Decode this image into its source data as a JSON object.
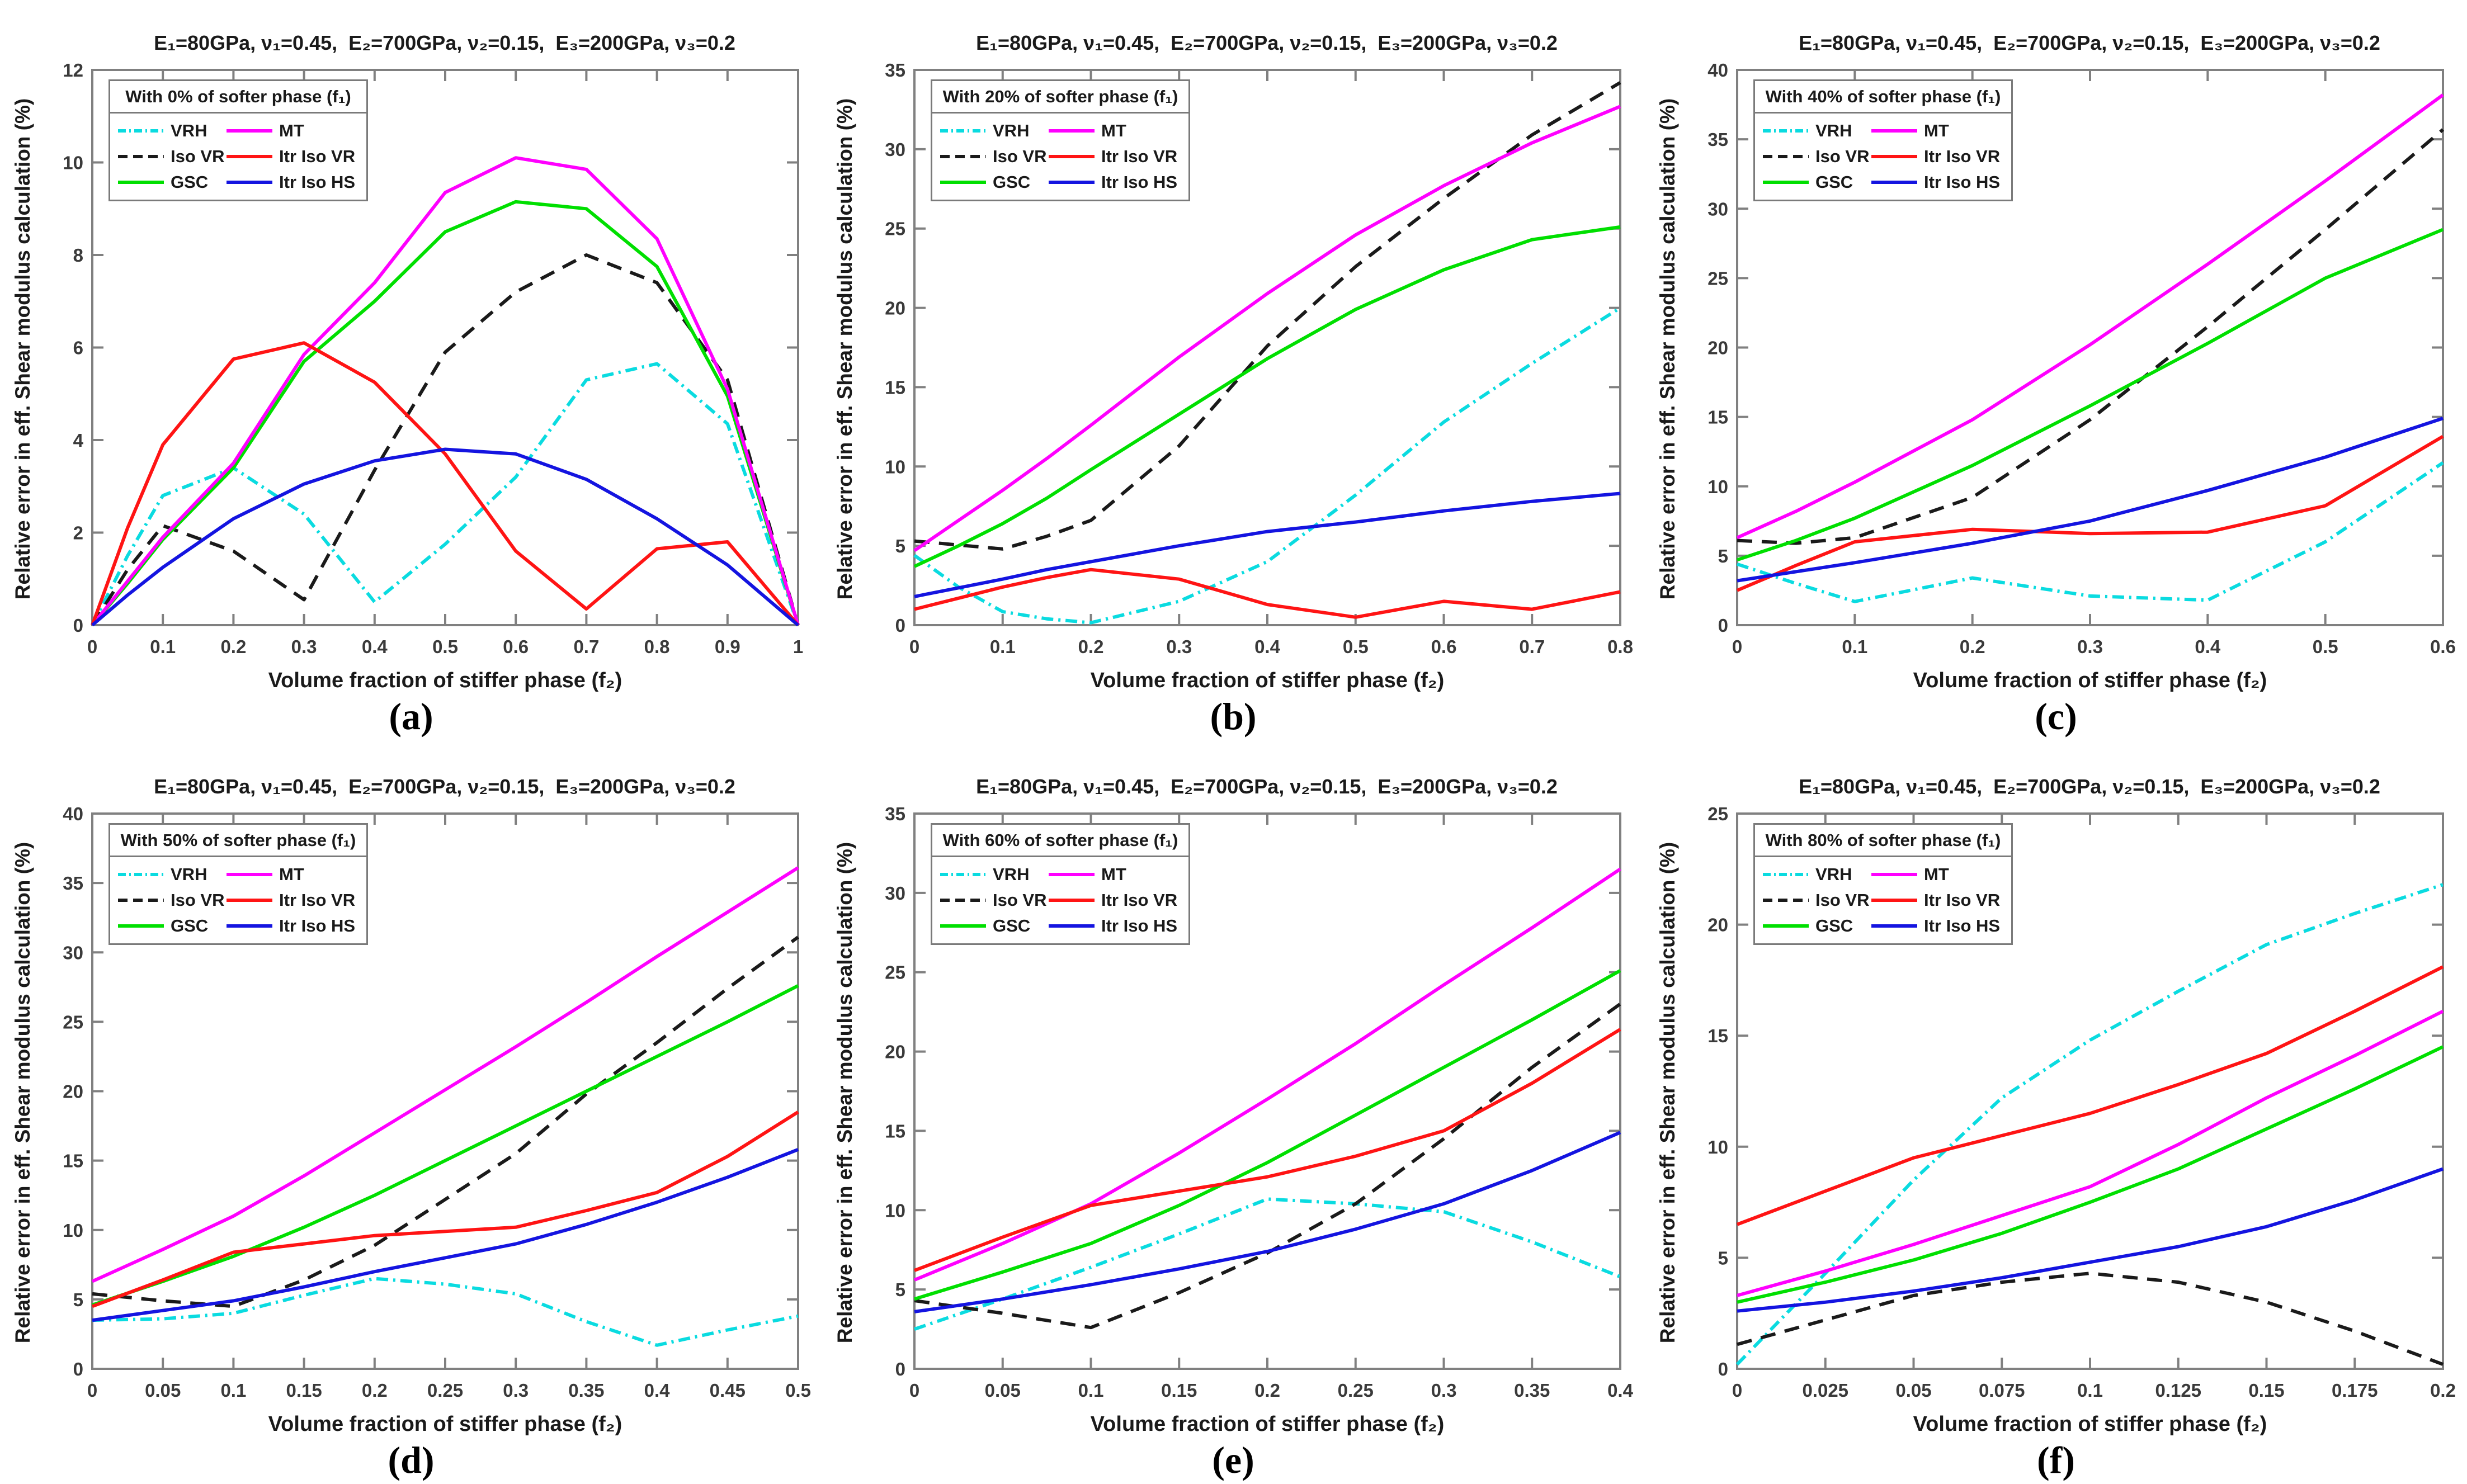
{
  "figure": {
    "title": "E₁=80GPa, ν₁=0.45,  E₂=700GPa, ν₂=0.15,  E₃=200GPa, ν₃=0.2",
    "xlabel": "Volume fraction of stiffer phase (f₂)",
    "ylabel": "Relative error in eff. Shear modulus calculation (%)"
  },
  "style": {
    "background": "#ffffff",
    "axis_color": "#808080",
    "tick_label_color": "#3a3a3a",
    "text_color": "#1a1a1a",
    "line_width": 6
  },
  "series": [
    {
      "name": "VRH",
      "color": "#0adbe0",
      "dash": "dashdot"
    },
    {
      "name": "Iso VR",
      "color": "#1a1a1a",
      "dash": "dashed"
    },
    {
      "name": "GSC",
      "color": "#00df00",
      "dash": "solid"
    },
    {
      "name": "MT",
      "color": "#ff00ff",
      "dash": "solid"
    },
    {
      "name": "Itr Iso VR",
      "color": "#ff1414",
      "dash": "solid"
    },
    {
      "name": "Itr Iso HS",
      "color": "#1414e0",
      "dash": "solid"
    }
  ],
  "chart_data": [
    {
      "type": "line",
      "caption": "(a)",
      "title": "E₁=80GPa, ν₁=0.45,  E₂=700GPa, ν₂=0.15,  E₃=200GPa, ν₃=0.2",
      "xlabel": "Volume fraction of stiffer phase (f₂)",
      "ylabel": "Relative error in eff. Shear modulus calculation (%)",
      "legend_title": "With 0% of softer phase (f₁)",
      "legend_position": "top-left",
      "grid": false,
      "xlim": [
        0,
        1
      ],
      "ylim": [
        0,
        12
      ],
      "xtick_labels": [
        "0",
        "0.1",
        "0.2",
        "0.3",
        "0.4",
        "0.5",
        "0.6",
        "0.7",
        "0.8",
        "0.9",
        "1"
      ],
      "xtick_values": [
        0,
        0.1,
        0.2,
        0.3,
        0.4,
        0.5,
        0.6,
        0.7,
        0.8,
        0.9,
        1
      ],
      "ytick_labels": [
        "0",
        "2",
        "4",
        "6",
        "8",
        "10",
        "12"
      ],
      "ytick_values": [
        0,
        2,
        4,
        6,
        8,
        10,
        12
      ],
      "x": [
        0,
        0.05,
        0.1,
        0.2,
        0.3,
        0.4,
        0.5,
        0.6,
        0.7,
        0.8,
        0.9,
        1
      ],
      "series": [
        {
          "name": "VRH",
          "values": [
            0,
            1.5,
            2.8,
            3.4,
            2.4,
            0.5,
            1.75,
            3.2,
            5.3,
            5.65,
            4.35,
            0
          ]
        },
        {
          "name": "Iso VR",
          "values": [
            0,
            1.2,
            2.15,
            1.6,
            0.55,
            3.35,
            5.9,
            7.2,
            8.0,
            7.4,
            5.3,
            0
          ]
        },
        {
          "name": "GSC",
          "values": [
            0,
            0.9,
            1.85,
            3.4,
            5.7,
            7.0,
            8.5,
            9.15,
            9.0,
            7.75,
            4.95,
            0
          ]
        },
        {
          "name": "MT",
          "values": [
            0,
            0.95,
            1.9,
            3.5,
            5.85,
            7.4,
            9.35,
            10.1,
            9.85,
            8.35,
            5.1,
            0
          ]
        },
        {
          "name": "Itr Iso VR",
          "values": [
            0,
            2.1,
            3.9,
            5.75,
            6.1,
            5.25,
            3.7,
            1.6,
            0.35,
            1.65,
            1.8,
            0
          ]
        },
        {
          "name": "Itr Iso HS",
          "values": [
            0,
            0.65,
            1.25,
            2.3,
            3.05,
            3.55,
            3.8,
            3.7,
            3.15,
            2.3,
            1.3,
            0
          ]
        }
      ]
    },
    {
      "type": "line",
      "caption": "(b)",
      "title": "E₁=80GPa, ν₁=0.45,  E₂=700GPa, ν₂=0.15,  E₃=200GPa, ν₃=0.2",
      "xlabel": "Volume fraction of stiffer phase (f₂)",
      "ylabel": "Relative error in eff. Shear modulus calculation (%)",
      "legend_title": "With 20% of softer phase (f₁)",
      "legend_position": "top-left",
      "grid": false,
      "xlim": [
        0,
        0.8
      ],
      "ylim": [
        0,
        35
      ],
      "xtick_labels": [
        "0",
        "0.1",
        "0.2",
        "0.3",
        "0.4",
        "0.5",
        "0.6",
        "0.7",
        "0.8"
      ],
      "xtick_values": [
        0,
        0.1,
        0.2,
        0.3,
        0.4,
        0.5,
        0.6,
        0.7,
        0.8
      ],
      "ytick_labels": [
        "0",
        "5",
        "10",
        "15",
        "20",
        "25",
        "30",
        "35"
      ],
      "ytick_values": [
        0,
        5,
        10,
        15,
        20,
        25,
        30,
        35
      ],
      "x": [
        0,
        0.05,
        0.1,
        0.15,
        0.2,
        0.3,
        0.4,
        0.5,
        0.6,
        0.7,
        0.8
      ],
      "series": [
        {
          "name": "VRH",
          "values": [
            4.4,
            2.4,
            0.85,
            0.4,
            0.15,
            1.5,
            4.0,
            8.2,
            12.8,
            16.5,
            20.0
          ]
        },
        {
          "name": "Iso VR",
          "values": [
            5.3,
            5.05,
            4.8,
            5.6,
            6.6,
            11.3,
            17.6,
            22.6,
            26.9,
            30.9,
            34.2
          ]
        },
        {
          "name": "GSC",
          "values": [
            3.7,
            5.0,
            6.4,
            8.0,
            9.8,
            13.3,
            16.8,
            19.9,
            22.4,
            24.3,
            25.1
          ]
        },
        {
          "name": "MT",
          "values": [
            4.7,
            6.6,
            8.5,
            10.5,
            12.6,
            16.9,
            20.9,
            24.6,
            27.7,
            30.4,
            32.7
          ]
        },
        {
          "name": "Itr Iso VR",
          "values": [
            1.0,
            1.7,
            2.4,
            3.0,
            3.5,
            2.9,
            1.3,
            0.5,
            1.5,
            1.0,
            2.1
          ]
        },
        {
          "name": "Itr Iso HS",
          "values": [
            1.8,
            2.35,
            2.9,
            3.5,
            4.0,
            5.0,
            5.9,
            6.5,
            7.2,
            7.8,
            8.3
          ]
        }
      ]
    },
    {
      "type": "line",
      "caption": "(c)",
      "title": "E₁=80GPa, ν₁=0.45,  E₂=700GPa, ν₂=0.15,  E₃=200GPa, ν₃=0.2",
      "xlabel": "Volume fraction of stiffer phase (f₂)",
      "ylabel": "Relative error in eff. Shear modulus calculation (%)",
      "legend_title": "With 40% of softer phase (f₁)",
      "legend_position": "top-left",
      "grid": false,
      "xlim": [
        0,
        0.6
      ],
      "ylim": [
        0,
        40
      ],
      "xtick_labels": [
        "0",
        "0.1",
        "0.2",
        "0.3",
        "0.4",
        "0.5",
        "0.6"
      ],
      "xtick_values": [
        0,
        0.1,
        0.2,
        0.3,
        0.4,
        0.5,
        0.6
      ],
      "ytick_labels": [
        "0",
        "5",
        "10",
        "15",
        "20",
        "25",
        "30",
        "35",
        "40"
      ],
      "ytick_values": [
        0,
        5,
        10,
        15,
        20,
        25,
        30,
        35,
        40
      ],
      "x": [
        0,
        0.05,
        0.1,
        0.2,
        0.3,
        0.4,
        0.5,
        0.6
      ],
      "series": [
        {
          "name": "VRH",
          "values": [
            4.4,
            3.0,
            1.7,
            3.4,
            2.1,
            1.8,
            6.0,
            11.7
          ]
        },
        {
          "name": "Iso VR",
          "values": [
            6.1,
            5.9,
            6.3,
            9.2,
            14.8,
            21.5,
            28.5,
            35.7
          ]
        },
        {
          "name": "GSC",
          "values": [
            4.7,
            6.1,
            7.7,
            11.5,
            15.8,
            20.3,
            25.0,
            28.5
          ]
        },
        {
          "name": "MT",
          "values": [
            6.3,
            8.2,
            10.3,
            14.8,
            20.2,
            26.0,
            32.0,
            38.2
          ]
        },
        {
          "name": "Itr Iso VR",
          "values": [
            2.5,
            4.3,
            6.0,
            6.9,
            6.6,
            6.7,
            8.6,
            13.6
          ]
        },
        {
          "name": "Itr Iso HS",
          "values": [
            3.2,
            3.85,
            4.5,
            5.9,
            7.5,
            9.7,
            12.1,
            14.9
          ]
        }
      ]
    },
    {
      "type": "line",
      "caption": "(d)",
      "title": "E₁=80GPa, ν₁=0.45,  E₂=700GPa, ν₂=0.15,  E₃=200GPa, ν₃=0.2",
      "xlabel": "Volume fraction of stiffer phase (f₂)",
      "ylabel": "Relative error in eff. Shear modulus calculation (%)",
      "legend_title": "With 50% of softer phase (f₁)",
      "legend_position": "top-left",
      "grid": false,
      "xlim": [
        0,
        0.5
      ],
      "ylim": [
        0,
        40
      ],
      "xtick_labels": [
        "0",
        "0.05",
        "0.1",
        "0.15",
        "0.2",
        "0.25",
        "0.3",
        "0.35",
        "0.4",
        "0.45",
        "0.5"
      ],
      "xtick_values": [
        0,
        0.05,
        0.1,
        0.15,
        0.2,
        0.25,
        0.3,
        0.35,
        0.4,
        0.45,
        0.5
      ],
      "ytick_labels": [
        "0",
        "5",
        "10",
        "15",
        "20",
        "25",
        "30",
        "35",
        "40"
      ],
      "ytick_values": [
        0,
        5,
        10,
        15,
        20,
        25,
        30,
        35,
        40
      ],
      "x": [
        0,
        0.05,
        0.1,
        0.15,
        0.2,
        0.25,
        0.3,
        0.35,
        0.4,
        0.45,
        0.5
      ],
      "series": [
        {
          "name": "VRH",
          "values": [
            3.5,
            3.6,
            4.0,
            5.3,
            6.5,
            6.1,
            5.4,
            3.4,
            1.7,
            2.8,
            3.8
          ]
        },
        {
          "name": "Iso VR",
          "values": [
            5.4,
            4.9,
            4.5,
            6.4,
            8.9,
            12.2,
            15.5,
            19.8,
            23.5,
            27.4,
            31.1
          ]
        },
        {
          "name": "GSC",
          "values": [
            4.6,
            6.3,
            8.1,
            10.2,
            12.5,
            15.0,
            17.5,
            20.0,
            22.5,
            25.0,
            27.6
          ]
        },
        {
          "name": "MT",
          "values": [
            6.3,
            8.6,
            11.0,
            13.9,
            17.0,
            20.1,
            23.2,
            26.4,
            29.7,
            32.9,
            36.1
          ]
        },
        {
          "name": "Itr Iso VR",
          "values": [
            4.5,
            6.4,
            8.4,
            9.0,
            9.6,
            9.9,
            10.2,
            11.4,
            12.7,
            15.3,
            18.5
          ]
        },
        {
          "name": "Itr Iso HS",
          "values": [
            3.5,
            4.2,
            4.9,
            5.9,
            7.0,
            8.0,
            9.0,
            10.4,
            12.0,
            13.8,
            15.8
          ]
        }
      ]
    },
    {
      "type": "line",
      "caption": "(e)",
      "title": "E₁=80GPa, ν₁=0.45,  E₂=700GPa, ν₂=0.15,  E₃=200GPa, ν₃=0.2",
      "xlabel": "Volume fraction of stiffer phase (f₂)",
      "ylabel": "Relative error in eff. Shear modulus calculation (%)",
      "legend_title": "With 60% of softer phase (f₁)",
      "legend_position": "top-left",
      "grid": false,
      "xlim": [
        0,
        0.4
      ],
      "ylim": [
        0,
        35
      ],
      "xtick_labels": [
        "0",
        "0.05",
        "0.1",
        "0.15",
        "0.2",
        "0.25",
        "0.3",
        "0.35",
        "0.4"
      ],
      "xtick_values": [
        0,
        0.05,
        0.1,
        0.15,
        0.2,
        0.25,
        0.3,
        0.35,
        0.4
      ],
      "ytick_labels": [
        "0",
        "5",
        "10",
        "15",
        "20",
        "25",
        "30",
        "35"
      ],
      "ytick_values": [
        0,
        5,
        10,
        15,
        20,
        25,
        30,
        35
      ],
      "x": [
        0,
        0.05,
        0.1,
        0.15,
        0.2,
        0.25,
        0.3,
        0.35,
        0.4
      ],
      "series": [
        {
          "name": "VRH",
          "values": [
            2.5,
            4.4,
            6.4,
            8.5,
            10.7,
            10.4,
            9.9,
            8.0,
            5.8
          ]
        },
        {
          "name": "Iso VR",
          "values": [
            4.3,
            3.5,
            2.6,
            4.8,
            7.3,
            10.4,
            14.5,
            19.0,
            23.0
          ]
        },
        {
          "name": "GSC",
          "values": [
            4.4,
            6.1,
            7.9,
            10.3,
            13.0,
            16.0,
            19.0,
            22.0,
            25.1
          ]
        },
        {
          "name": "MT",
          "values": [
            5.6,
            7.9,
            10.4,
            13.6,
            17.0,
            20.5,
            24.2,
            27.8,
            31.5
          ]
        },
        {
          "name": "Itr Iso VR",
          "values": [
            6.2,
            8.3,
            10.3,
            11.2,
            12.1,
            13.4,
            15.0,
            18.0,
            21.4
          ]
        },
        {
          "name": "Itr Iso HS",
          "values": [
            3.6,
            4.4,
            5.3,
            6.3,
            7.4,
            8.8,
            10.4,
            12.5,
            14.9
          ]
        }
      ]
    },
    {
      "type": "line",
      "caption": "(f)",
      "title": "E₁=80GPa, ν₁=0.45,  E₂=700GPa, ν₂=0.15,  E₃=200GPa, ν₃=0.2",
      "xlabel": "Volume fraction of stiffer phase (f₂)",
      "ylabel": "Relative error in eff. Shear modulus calculation (%)",
      "legend_title": "With 80% of softer phase (f₁)",
      "legend_position": "top-left",
      "grid": false,
      "xlim": [
        0,
        0.2
      ],
      "ylim": [
        0,
        25
      ],
      "xtick_labels": [
        "0",
        "0.025",
        "0.05",
        "0.075",
        "0.1",
        "0.125",
        "0.15",
        "0.175",
        "0.2"
      ],
      "xtick_values": [
        0,
        0.025,
        0.05,
        0.075,
        0.1,
        0.125,
        0.15,
        0.175,
        0.2
      ],
      "ytick_labels": [
        "0",
        "5",
        "10",
        "15",
        "20",
        "25"
      ],
      "ytick_values": [
        0,
        5,
        10,
        15,
        20,
        25
      ],
      "x": [
        0,
        0.025,
        0.05,
        0.075,
        0.1,
        0.125,
        0.15,
        0.175,
        0.2
      ],
      "series": [
        {
          "name": "VRH",
          "values": [
            0.2,
            4.3,
            8.5,
            12.2,
            14.8,
            17.0,
            19.1,
            20.5,
            21.8
          ]
        },
        {
          "name": "Iso VR",
          "values": [
            1.1,
            2.2,
            3.3,
            3.9,
            4.3,
            3.9,
            3.0,
            1.7,
            0.2
          ]
        },
        {
          "name": "GSC",
          "values": [
            3.0,
            3.9,
            4.9,
            6.1,
            7.5,
            9.0,
            10.8,
            12.6,
            14.5
          ]
        },
        {
          "name": "MT",
          "values": [
            3.3,
            4.4,
            5.6,
            6.9,
            8.2,
            10.1,
            12.2,
            14.1,
            16.1
          ]
        },
        {
          "name": "Itr Iso VR",
          "values": [
            6.5,
            8.0,
            9.5,
            10.5,
            11.5,
            12.8,
            14.2,
            16.1,
            18.1
          ]
        },
        {
          "name": "Itr Iso HS",
          "values": [
            2.6,
            3.0,
            3.5,
            4.1,
            4.8,
            5.5,
            6.4,
            7.6,
            9.0
          ]
        }
      ]
    }
  ]
}
